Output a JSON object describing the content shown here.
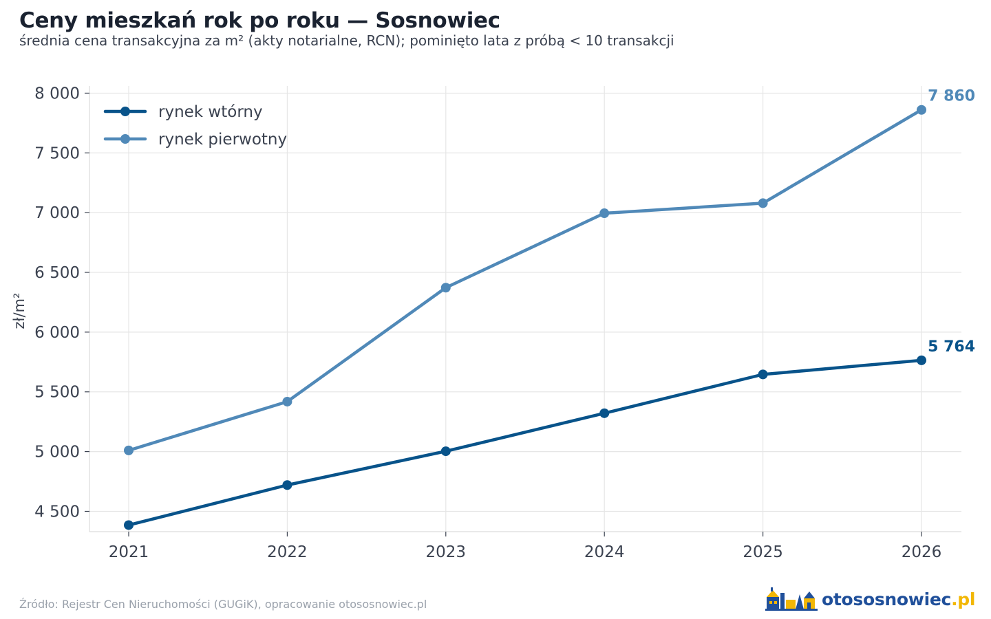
{
  "title": "Ceny mieszkań rok po roku — Sosnowiec",
  "subtitle": "średnia cena transakcyjna za m² (akty notarialne, RCN); pominięto lata z próbą < 10 transakcji",
  "source": "Źródło: Rejestr Cen Nieruchomości (GUGiK), opracowanie otososnowiec.pl",
  "logo": {
    "name": "otososnowiec",
    "tld": ".pl",
    "icon": "city-skyline-icon"
  },
  "colors": {
    "wtorny": "#08538a",
    "pierwotny": "#5089b8",
    "grid": "#e6e6e6",
    "axis_text": "#3b4250"
  },
  "chart_data": {
    "type": "line",
    "title": "Ceny mieszkań rok po roku — Sosnowiec",
    "ylabel": "zł/m²",
    "xlabel": "",
    "x": [
      "2021",
      "2022",
      "2023",
      "2024",
      "2025",
      "2026"
    ],
    "ylim": [
      4330,
      8060
    ],
    "yticks": [
      4500,
      5000,
      5500,
      6000,
      6500,
      7000,
      7500,
      8000
    ],
    "ytick_labels": [
      "4 500",
      "5 000",
      "5 500",
      "6 000",
      "6 500",
      "7 000",
      "7 500",
      "8 000"
    ],
    "grid": true,
    "legend_position": "top-left",
    "series": [
      {
        "name": "rynek wtórny",
        "color": "#08538a",
        "values": [
          4385,
          4720,
          5003,
          5321,
          5646,
          5764
        ],
        "end_label": "5 764"
      },
      {
        "name": "rynek pierwotny",
        "color": "#5089b8",
        "values": [
          5010,
          5418,
          6372,
          6995,
          7079,
          7860
        ],
        "end_label": "7 860"
      }
    ]
  }
}
